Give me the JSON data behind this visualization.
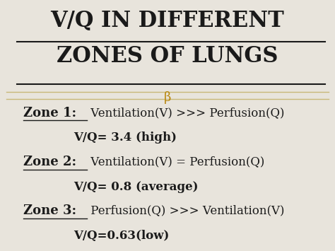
{
  "title_line1": "V/Q IN DIFFERENT",
  "title_line2": "ZONES OF LUNGS",
  "bg_color": "#e8e4dc",
  "title_color": "#1a1a1a",
  "text_color": "#1a1a1a",
  "gold_color": "#b8860b",
  "separator_color": "#c8b878",
  "zone1_label": "Zone 1:",
  "zone1_desc": " Ventilation(V) >>> Perfusion(Q)",
  "zone1_value": "V/Q= 3.4 (high)",
  "zone2_label": "Zone 2:",
  "zone2_desc": " Ventilation(V) = Perfusion(Q)",
  "zone2_value": "V/Q= 0.8 (average)",
  "zone3_label": "Zone 3:",
  "zone3_desc": " Perfusion(Q) >>> Ventilation(V)",
  "zone3_value": "V/Q=0.63(low)",
  "title_fontsize": 22,
  "zone_label_fontsize": 13,
  "zone_desc_fontsize": 12,
  "zone_value_fontsize": 12,
  "figsize": [
    4.74,
    3.55
  ],
  "dpi": 100
}
